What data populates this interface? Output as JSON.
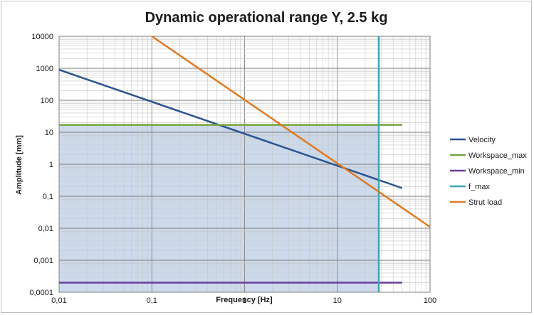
{
  "chart_data": {
    "type": "line",
    "title": "Dynamic operational range Y, 2.5 kg",
    "xlabel": "Frequency [Hz]",
    "ylabel": "Amplitude [mm]",
    "xscale": "log",
    "yscale": "log",
    "xlim": [
      0.01,
      100
    ],
    "ylim": [
      0.0001,
      10000
    ],
    "grid": true,
    "legend_position": "right",
    "x_tick_labels": [
      "0,01",
      "0,1",
      "1",
      "10",
      "100"
    ],
    "y_tick_labels": [
      "0,0001",
      "0,001",
      "0,01",
      "0,1",
      "1",
      "10",
      "100",
      "1000",
      "10000"
    ],
    "shaded_region": {
      "color": "#c6d6ea",
      "x_range": [
        0.01,
        28
      ],
      "y_range": [
        0.0001,
        17
      ]
    },
    "series": [
      {
        "name": "Velocity",
        "color": "#2b5490",
        "x": [
          0.01,
          50
        ],
        "y": [
          900,
          0.18
        ]
      },
      {
        "name": "Workspace_max",
        "color": "#77a33a",
        "x": [
          0.01,
          50
        ],
        "y": [
          17,
          17
        ]
      },
      {
        "name": "Workspace_min",
        "color": "#6a3d9a",
        "x": [
          0.01,
          50
        ],
        "y": [
          0.0002,
          0.0002
        ]
      },
      {
        "name": "f_max",
        "color": "#3aa5b5",
        "x": [
          28,
          28
        ],
        "y": [
          0.0001,
          10000
        ]
      },
      {
        "name": "Strut load",
        "color": "#e07b22",
        "x": [
          0.1,
          100
        ],
        "y": [
          10000,
          0.011
        ]
      }
    ]
  }
}
